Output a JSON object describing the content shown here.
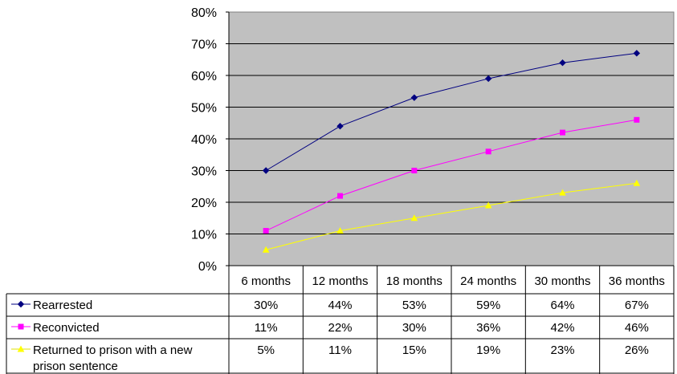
{
  "chart_data": {
    "type": "line",
    "categories": [
      "6 months",
      "12 months",
      "18 months",
      "24 months",
      "30 months",
      "36 months"
    ],
    "ylim": [
      0,
      80
    ],
    "ytick_labels": [
      "0%",
      "10%",
      "20%",
      "30%",
      "40%",
      "50%",
      "60%",
      "70%",
      "80%"
    ],
    "grid": true,
    "legend_placement": "data table below chart",
    "plot_background": "#c0c0c0",
    "series": [
      {
        "name": "Rearrested",
        "color": "#000080",
        "marker": "diamond",
        "values": [
          30,
          44,
          53,
          59,
          64,
          67
        ],
        "labels": [
          "30%",
          "44%",
          "53%",
          "59%",
          "64%",
          "67%"
        ]
      },
      {
        "name": "Reconvicted",
        "color": "#ff00ff",
        "marker": "square",
        "values": [
          11,
          22,
          30,
          36,
          42,
          46
        ],
        "labels": [
          "11%",
          "22%",
          "30%",
          "36%",
          "42%",
          "46%"
        ]
      },
      {
        "name": "Returned to prison with a new prison sentence",
        "name_lines": [
          "Returned to prison with a new",
          "prison sentence"
        ],
        "color": "#ffff00",
        "marker": "triangle",
        "values": [
          5,
          11,
          15,
          19,
          23,
          26
        ],
        "labels": [
          "5%",
          "11%",
          "15%",
          "19%",
          "23%",
          "26%"
        ]
      }
    ]
  }
}
